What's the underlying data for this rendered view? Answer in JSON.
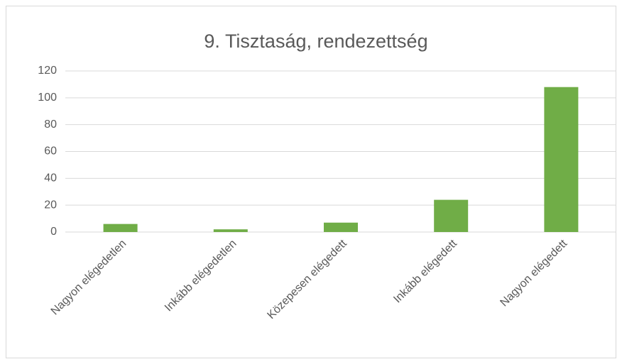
{
  "chart_data": {
    "type": "bar",
    "title": "9. Tisztaság, rendezettség",
    "categories": [
      "Nagyon elégedetlen",
      "Inkább elégedetlen",
      "Közepesen elégedett",
      "Inkább elégedett",
      "Nagyon elégedett"
    ],
    "values": [
      6,
      2,
      7,
      24,
      108
    ],
    "color": "#70ad47",
    "ylim": [
      0,
      120
    ],
    "yticks": [
      0,
      20,
      40,
      60,
      80,
      100,
      120
    ],
    "grid": true
  }
}
